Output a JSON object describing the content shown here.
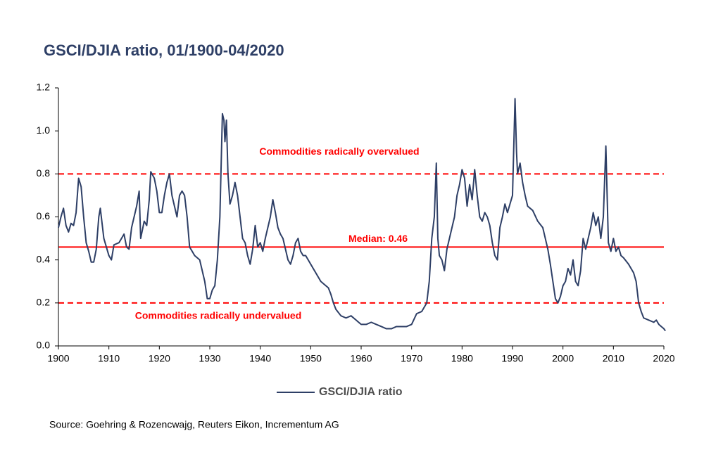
{
  "chart_data": {
    "type": "line",
    "title": "GSCI/DJIA ratio, 01/1900-04/2020",
    "source": "Source: Goehring & Rozencwajg, Reuters Eikon, Incrementum AG",
    "x": [
      1900,
      1900.5,
      1901,
      1901.5,
      1902,
      1902.5,
      1903,
      1903.5,
      1904,
      1904.5,
      1905,
      1905.5,
      1906,
      1906.5,
      1907,
      1907.5,
      1908,
      1908.3,
      1909,
      1910,
      1910.5,
      1911,
      1912,
      1912.5,
      1913,
      1913.5,
      1914,
      1914.5,
      1915,
      1915.5,
      1916,
      1916.3,
      1917,
      1917.5,
      1918,
      1918.3,
      1919,
      1919.5,
      1920,
      1920.5,
      1921,
      1921.5,
      1922,
      1922.5,
      1923,
      1923.5,
      1924,
      1924.5,
      1925,
      1925.5,
      1926,
      1926.5,
      1927,
      1928,
      1929,
      1929.5,
      1930,
      1930.5,
      1931,
      1931.5,
      1932,
      1932.5,
      1932.8,
      1933,
      1933.3,
      1933.6,
      1934,
      1934.5,
      1935,
      1935.5,
      1936,
      1936.5,
      1937,
      1937.5,
      1938,
      1938.5,
      1939,
      1939.5,
      1940,
      1940.5,
      1941,
      1941.5,
      1942,
      1942.5,
      1943,
      1943.5,
      1944,
      1944.5,
      1945,
      1945.5,
      1946,
      1946.5,
      1947,
      1947.5,
      1948,
      1948.5,
      1949,
      1950,
      1951,
      1952,
      1953,
      1953.5,
      1954,
      1954.5,
      1955,
      1956,
      1957,
      1958,
      1959,
      1960,
      1961,
      1962,
      1963,
      1964,
      1965,
      1966,
      1967,
      1968,
      1969,
      1970,
      1971,
      1972,
      1973,
      1973.5,
      1974,
      1974.5,
      1974.9,
      1975.2,
      1975.5,
      1976,
      1976.5,
      1977,
      1977.5,
      1978,
      1978.5,
      1979,
      1979.5,
      1980,
      1980.5,
      1981,
      1981.5,
      1982,
      1982.5,
      1983,
      1983.5,
      1984,
      1984.5,
      1985,
      1985.5,
      1986,
      1986.5,
      1987,
      1987.5,
      1988,
      1988.5,
      1989,
      1989.5,
      1990,
      1990.5,
      1990.8,
      1991,
      1991.5,
      1992,
      1992.5,
      1993,
      1994,
      1995,
      1996,
      1996.5,
      1997,
      1997.5,
      1998,
      1998.5,
      1999,
      1999.5,
      2000,
      2000.5,
      2001,
      2001.5,
      2002,
      2002.5,
      2003,
      2003.5,
      2004,
      2004.5,
      2005,
      2005.5,
      2006,
      2006.5,
      2007,
      2007.5,
      2008,
      2008.5,
      2009,
      2009.5,
      2010,
      2010.5,
      2011,
      2011.5,
      2012,
      2013,
      2014,
      2014.5,
      2015,
      2015.5,
      2016,
      2017,
      2018,
      2018.5,
      2019,
      2019.5,
      2020,
      2020.3
    ],
    "series": [
      {
        "name": "GSCI/DJIA ratio",
        "color": "#2e3f66",
        "values": [
          0.55,
          0.6,
          0.64,
          0.56,
          0.53,
          0.57,
          0.56,
          0.62,
          0.78,
          0.74,
          0.6,
          0.48,
          0.44,
          0.39,
          0.39,
          0.45,
          0.6,
          0.64,
          0.5,
          0.42,
          0.4,
          0.47,
          0.48,
          0.5,
          0.52,
          0.46,
          0.45,
          0.55,
          0.6,
          0.65,
          0.72,
          0.5,
          0.58,
          0.56,
          0.68,
          0.81,
          0.78,
          0.72,
          0.62,
          0.62,
          0.7,
          0.76,
          0.8,
          0.7,
          0.65,
          0.6,
          0.7,
          0.72,
          0.7,
          0.6,
          0.46,
          0.44,
          0.42,
          0.4,
          0.3,
          0.22,
          0.22,
          0.26,
          0.28,
          0.4,
          0.6,
          1.08,
          1.05,
          0.95,
          1.05,
          0.8,
          0.66,
          0.7,
          0.76,
          0.7,
          0.6,
          0.5,
          0.48,
          0.42,
          0.38,
          0.45,
          0.56,
          0.46,
          0.48,
          0.44,
          0.5,
          0.55,
          0.6,
          0.68,
          0.62,
          0.55,
          0.52,
          0.5,
          0.45,
          0.4,
          0.38,
          0.42,
          0.48,
          0.5,
          0.44,
          0.42,
          0.42,
          0.38,
          0.34,
          0.3,
          0.28,
          0.27,
          0.24,
          0.2,
          0.17,
          0.14,
          0.13,
          0.14,
          0.12,
          0.1,
          0.1,
          0.11,
          0.1,
          0.09,
          0.08,
          0.08,
          0.09,
          0.09,
          0.09,
          0.1,
          0.15,
          0.16,
          0.2,
          0.3,
          0.5,
          0.6,
          0.85,
          0.5,
          0.42,
          0.4,
          0.35,
          0.45,
          0.5,
          0.55,
          0.6,
          0.7,
          0.75,
          0.82,
          0.78,
          0.65,
          0.75,
          0.68,
          0.82,
          0.7,
          0.6,
          0.58,
          0.62,
          0.6,
          0.56,
          0.48,
          0.42,
          0.4,
          0.55,
          0.6,
          0.66,
          0.62,
          0.66,
          0.7,
          1.15,
          0.9,
          0.8,
          0.85,
          0.76,
          0.7,
          0.65,
          0.63,
          0.58,
          0.55,
          0.5,
          0.45,
          0.38,
          0.3,
          0.22,
          0.2,
          0.23,
          0.28,
          0.3,
          0.36,
          0.33,
          0.4,
          0.3,
          0.28,
          0.35,
          0.5,
          0.45,
          0.5,
          0.55,
          0.62,
          0.56,
          0.6,
          0.5,
          0.6,
          0.93,
          0.48,
          0.44,
          0.5,
          0.44,
          0.46,
          0.42,
          0.41,
          0.38,
          0.34,
          0.3,
          0.2,
          0.16,
          0.13,
          0.12,
          0.11,
          0.12,
          0.1,
          0.09,
          0.08,
          0.07
        ]
      }
    ],
    "reference_lines": [
      {
        "value": 0.8,
        "label": "Commodities radically overvalued",
        "style": "dashed",
        "color": "#ff0000"
      },
      {
        "value": 0.46,
        "label": "Median: 0.46",
        "style": "solid",
        "color": "#ff0000"
      },
      {
        "value": 0.2,
        "label": "Commodities radically undervalued",
        "style": "dashed",
        "color": "#ff0000"
      }
    ],
    "xlim": [
      1900,
      2020
    ],
    "xticks": [
      1900,
      1910,
      1920,
      1930,
      1940,
      1950,
      1960,
      1970,
      1980,
      1990,
      2000,
      2010,
      2020
    ],
    "ylim": [
      0,
      1.2
    ],
    "yticks": [
      {
        "value": 0,
        "label": "0.0"
      },
      0.2,
      0.4,
      0.6,
      0.8,
      {
        "value": 1,
        "label": "1.0"
      },
      1.2
    ],
    "grid": false,
    "legend": "bottom"
  }
}
